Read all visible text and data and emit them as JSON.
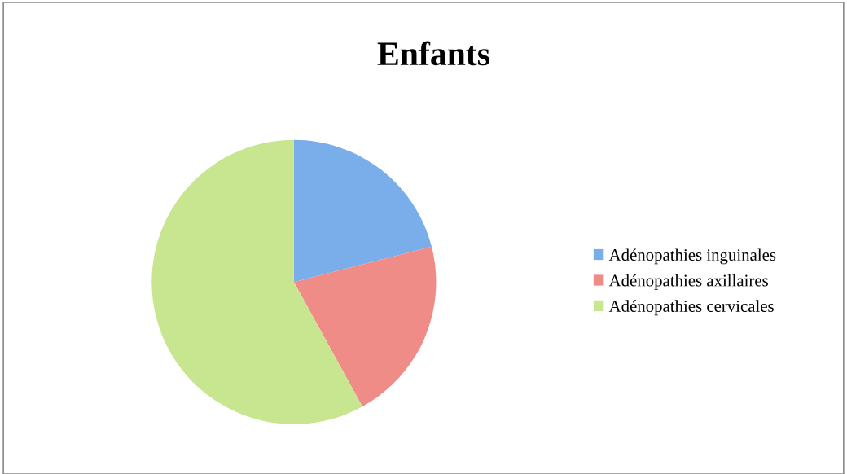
{
  "chart_data": {
    "type": "pie",
    "title": "Enfants",
    "categories": [
      "Adénopathies inguinales",
      "Adénopathies axillaires",
      "Adénopathies cervicales"
    ],
    "values": [
      21,
      21,
      58
    ],
    "colors": [
      "#7aaeea",
      "#ef8c87",
      "#c8e590"
    ],
    "legend": "right"
  }
}
